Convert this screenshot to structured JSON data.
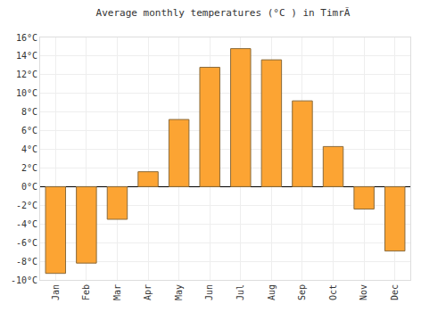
{
  "chart_data": {
    "type": "bar",
    "title": "Average monthly temperatures (°C ) in TimrÃ",
    "categories": [
      "Jan",
      "Feb",
      "Mar",
      "Apr",
      "May",
      "Jun",
      "Jul",
      "Aug",
      "Sep",
      "Oct",
      "Nov",
      "Dec"
    ],
    "values": [
      -9.3,
      -8.2,
      -3.5,
      1.6,
      7.2,
      12.8,
      14.8,
      13.6,
      9.2,
      4.3,
      -2.4,
      -6.9
    ],
    "color": "#fca433",
    "ylim": [
      -10,
      16
    ],
    "yticks": [
      {
        "value": -10,
        "label": "-10°C"
      },
      {
        "value": -8,
        "label": "-8°C"
      },
      {
        "value": -6,
        "label": "-6°C"
      },
      {
        "value": -4,
        "label": "-4°C"
      },
      {
        "value": -2,
        "label": "-2°C"
      },
      {
        "value": 0,
        "label": "0°C"
      },
      {
        "value": 2,
        "label": "2°C"
      },
      {
        "value": 4,
        "label": "4°C"
      },
      {
        "value": 6,
        "label": "6°C"
      },
      {
        "value": 8,
        "label": "8°C"
      },
      {
        "value": 10,
        "label": "10°C"
      },
      {
        "value": 12,
        "label": "12°C"
      },
      {
        "value": 14,
        "label": "14°C"
      },
      {
        "value": 16,
        "label": "16°C"
      }
    ],
    "grid": true
  }
}
